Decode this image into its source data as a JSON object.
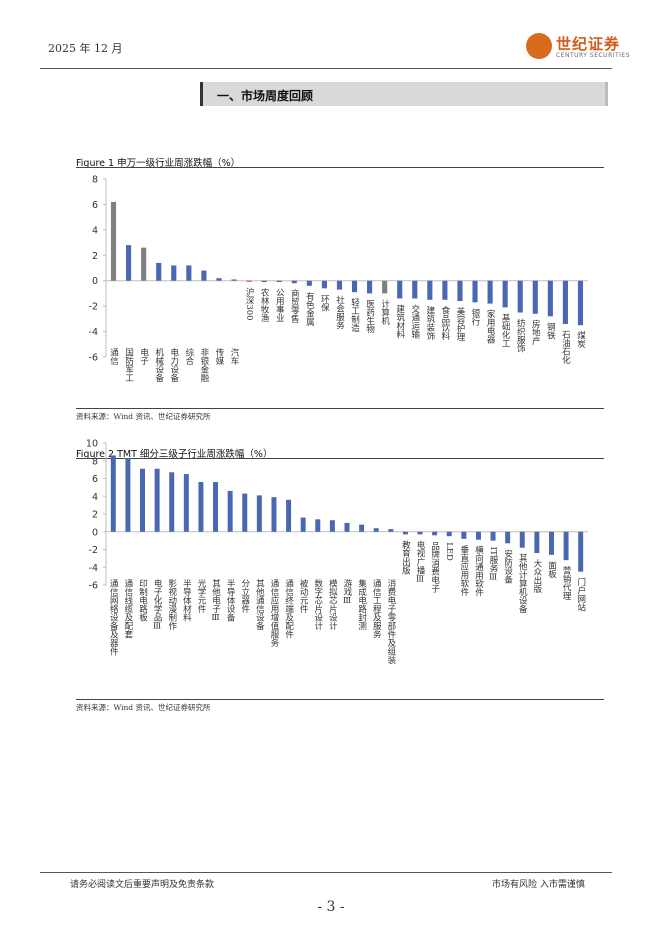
{
  "header": {
    "date": "2025 年 12 月",
    "logo_cn": "世纪证券",
    "logo_en": "CENTURY SECURITIES"
  },
  "section_title": "一、市场周度回顾",
  "colors": {
    "blue": "#4a67b1",
    "grey": "#7f7f7f",
    "red": "#c0392b",
    "orange": "#d96b1e"
  },
  "figures": [
    {
      "title": "Figure 1  申万一级行业周涨跌幅（%）",
      "source": "资料来源：Wind 资讯、世纪证券研究所",
      "chart_data": {
        "type": "bar",
        "title": "申万一级行业周涨跌幅（%）",
        "ylim": [
          -6,
          8
        ],
        "yticks": [
          -6,
          -4,
          -2,
          0,
          2,
          4,
          6,
          8
        ],
        "categories": [
          "通信",
          "国防军工",
          "电子",
          "机械设备",
          "电力设备",
          "综合",
          "非银金融",
          "传媒",
          "汽车",
          "沪深300",
          "农林牧渔",
          "公用事业",
          "商贸零售",
          "有色金属",
          "环保",
          "社会服务",
          "轻工制造",
          "医药生物",
          "计算机",
          "建筑材料",
          "交通运输",
          "建筑装饰",
          "食品饮料",
          "美容护理",
          "银行",
          "家用电器",
          "基础化工",
          "纺织服饰",
          "房地产",
          "钢铁",
          "石油石化",
          "煤炭"
        ],
        "values": [
          6.2,
          2.8,
          2.6,
          1.4,
          1.2,
          1.2,
          0.8,
          0.2,
          0.1,
          -0.05,
          -0.1,
          -0.1,
          -0.2,
          -0.4,
          -0.6,
          -0.7,
          -0.9,
          -1.0,
          -1.0,
          -1.4,
          -1.4,
          -1.5,
          -1.5,
          -1.6,
          -1.7,
          -1.8,
          -2.1,
          -2.5,
          -2.6,
          -2.8,
          -3.4,
          -3.5
        ],
        "colors": [
          "grey",
          "blue",
          "grey",
          "blue",
          "blue",
          "blue",
          "blue",
          "blue",
          "blue",
          "red",
          "blue",
          "blue",
          "blue",
          "blue",
          "blue",
          "blue",
          "blue",
          "blue",
          "grey",
          "blue",
          "blue",
          "blue",
          "blue",
          "blue",
          "blue",
          "blue",
          "blue",
          "blue",
          "blue",
          "blue",
          "blue",
          "blue"
        ]
      }
    },
    {
      "title": "Figure 2 TMT 细分三级子行业周涨跌幅（%）",
      "source": "资料来源：Wind 资讯、世纪证券研究所",
      "chart_data": {
        "type": "bar",
        "title": "TMT 细分三级子行业周涨跌幅（%）",
        "ylim": [
          -6,
          10
        ],
        "yticks": [
          -6,
          -4,
          -2,
          0,
          2,
          4,
          6,
          8,
          10
        ],
        "categories": [
          "通信网络设备及器件",
          "通信线缆及配套",
          "印制电路板",
          "电子化学品Ⅲ",
          "影视动漫制作",
          "半导体材料",
          "光学元件",
          "其他电子Ⅲ",
          "半导体设备",
          "分立器件",
          "其他通信设备",
          "通信应用增值服务",
          "通信终端及配件",
          "被动元件",
          "数字芯片设计",
          "模拟芯片设计",
          "游戏Ⅲ",
          "集成电路封测",
          "通信工程及服务",
          "消费电子零部件及组装",
          "教育出版",
          "电视广播Ⅲ",
          "品牌消费电子",
          "LED",
          "垂直应用软件",
          "横向通用软件",
          "IT服务Ⅲ",
          "安防设备",
          "其他计算机设备",
          "大众出版",
          "面板",
          "营销代理",
          "门户网站"
        ],
        "values": [
          8.6,
          8.3,
          7.1,
          7.1,
          6.7,
          6.5,
          5.6,
          5.6,
          4.6,
          4.3,
          4.1,
          3.9,
          3.6,
          1.6,
          1.4,
          1.3,
          1.0,
          0.8,
          0.4,
          0.3,
          -0.3,
          -0.3,
          -0.4,
          -0.5,
          -0.8,
          -0.9,
          -1.0,
          -1.3,
          -1.8,
          -2.4,
          -2.6,
          -3.2,
          -4.5
        ],
        "colors": [
          "blue",
          "blue",
          "blue",
          "blue",
          "blue",
          "blue",
          "blue",
          "blue",
          "blue",
          "blue",
          "blue",
          "blue",
          "blue",
          "blue",
          "blue",
          "blue",
          "blue",
          "blue",
          "blue",
          "blue",
          "blue",
          "blue",
          "blue",
          "blue",
          "blue",
          "blue",
          "blue",
          "blue",
          "blue",
          "blue",
          "blue",
          "blue",
          "blue"
        ]
      }
    }
  ],
  "footer": {
    "disclaimer": "请务必阅读文后重要声明及免责条款",
    "risk": "市场有风险 入市需谨慎",
    "page": "- 3 -"
  }
}
